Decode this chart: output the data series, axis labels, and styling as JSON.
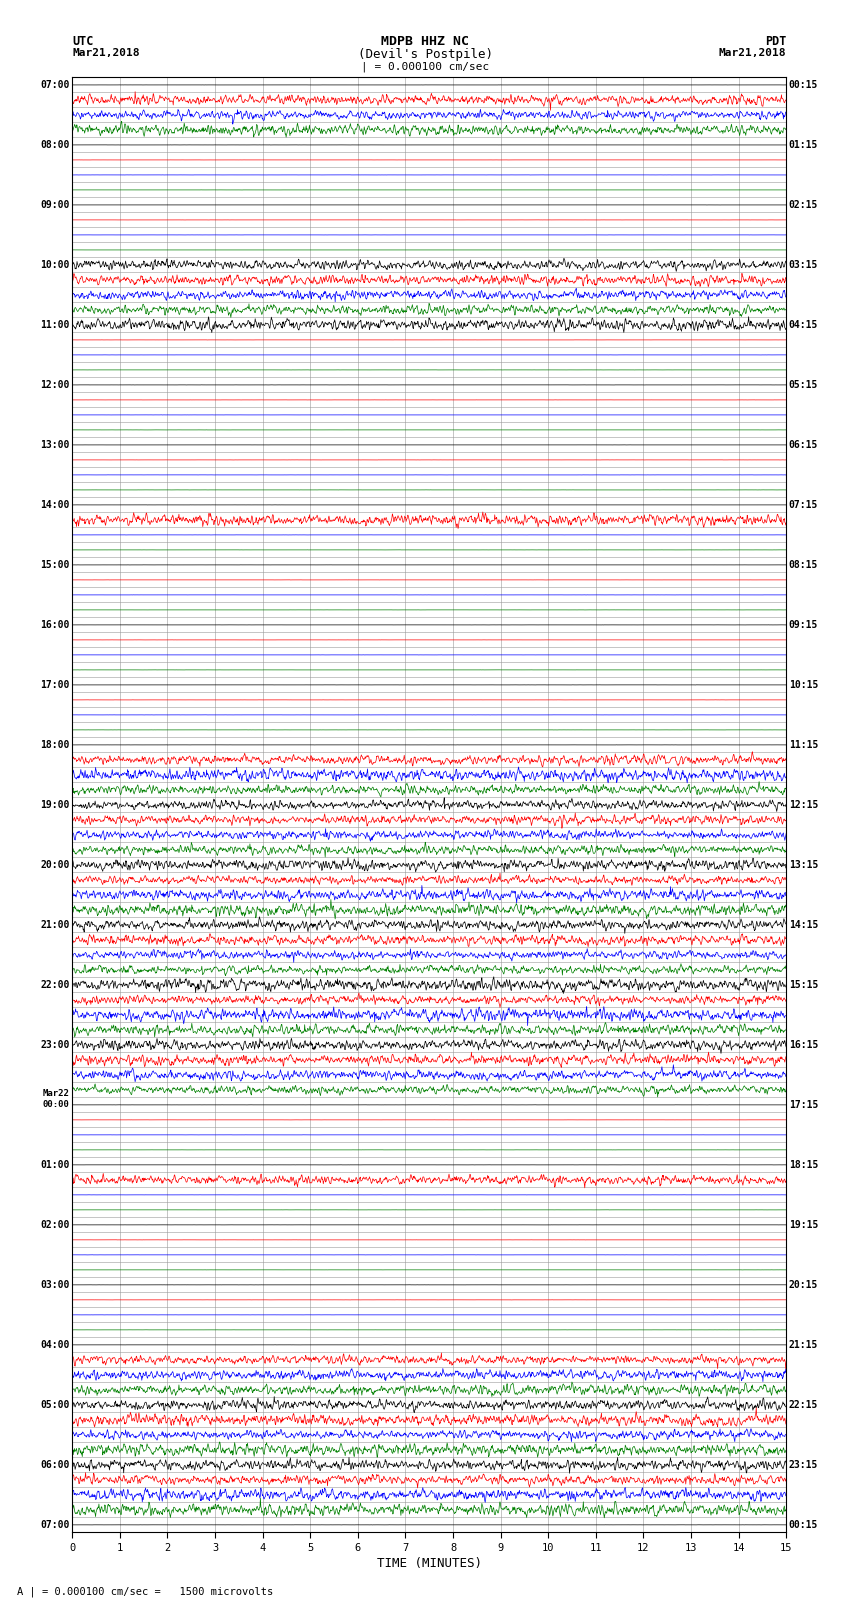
{
  "title_line1": "MDPB HHZ NC",
  "title_line2": "(Devil's Postpile)",
  "title_scale": "| = 0.000100 cm/sec",
  "xlabel": "TIME (MINUTES)",
  "footer": "A | = 0.000100 cm/sec =   1500 microvolts",
  "xlim": [
    0,
    15
  ],
  "xticks": [
    0,
    1,
    2,
    3,
    4,
    5,
    6,
    7,
    8,
    9,
    10,
    11,
    12,
    13,
    14,
    15
  ],
  "bg_color": "white",
  "grid_color": "#999999",
  "colors": [
    "black",
    "red",
    "blue",
    "green"
  ],
  "n_rows": 97,
  "row_labels_utc": {
    "0": "07:00",
    "4": "08:00",
    "8": "09:00",
    "12": "10:00",
    "16": "11:00",
    "20": "12:00",
    "24": "13:00",
    "28": "14:00",
    "32": "15:00",
    "36": "16:00",
    "40": "17:00",
    "44": "18:00",
    "48": "19:00",
    "52": "20:00",
    "56": "21:00",
    "60": "22:00",
    "64": "23:00",
    "68": "Mar22\n00:00",
    "72": "01:00",
    "76": "02:00",
    "80": "03:00",
    "84": "04:00",
    "88": "05:00",
    "92": "06:00",
    "96": "07:00"
  },
  "row_labels_pdt": {
    "0": "00:15",
    "4": "01:15",
    "8": "02:15",
    "12": "03:15",
    "16": "04:15",
    "20": "05:15",
    "24": "06:15",
    "28": "07:15",
    "32": "08:15",
    "36": "09:15",
    "40": "10:15",
    "44": "11:15",
    "48": "12:15",
    "52": "13:15",
    "56": "14:15",
    "60": "15:15",
    "64": "16:15",
    "68": "17:15",
    "72": "18:15",
    "76": "19:15",
    "80": "20:15",
    "84": "21:15",
    "88": "22:15",
    "92": "23:15",
    "96": "00:15"
  },
  "active_rows": [
    [
      0,
      3
    ],
    [
      1,
      0
    ],
    [
      1,
      1
    ],
    [
      1,
      2
    ],
    [
      2,
      0
    ],
    [
      2,
      1
    ],
    [
      2,
      2
    ],
    [
      3,
      0
    ],
    [
      3,
      1
    ],
    [
      3,
      2
    ],
    [
      3,
      3
    ],
    [
      12,
      0
    ],
    [
      12,
      1
    ],
    [
      12,
      2
    ],
    [
      13,
      0
    ],
    [
      13,
      1
    ],
    [
      13,
      2
    ],
    [
      13,
      3
    ],
    [
      14,
      0
    ],
    [
      14,
      1
    ],
    [
      14,
      2
    ],
    [
      14,
      3
    ],
    [
      15,
      0
    ],
    [
      15,
      1
    ],
    [
      15,
      2
    ],
    [
      15,
      3
    ],
    [
      16,
      0
    ],
    [
      16,
      1
    ],
    [
      16,
      2
    ],
    [
      16,
      3
    ],
    [
      28,
      1
    ],
    [
      28,
      2
    ],
    [
      29,
      1
    ],
    [
      29,
      2
    ],
    [
      44,
      2
    ],
    [
      44,
      3
    ],
    [
      45,
      0
    ],
    [
      45,
      1
    ],
    [
      45,
      2
    ],
    [
      45,
      3
    ],
    [
      46,
      0
    ],
    [
      46,
      1
    ],
    [
      46,
      2
    ],
    [
      46,
      3
    ],
    [
      47,
      0
    ],
    [
      47,
      1
    ],
    [
      47,
      2
    ],
    [
      47,
      3
    ],
    [
      48,
      0
    ],
    [
      48,
      1
    ],
    [
      48,
      2
    ],
    [
      48,
      3
    ],
    [
      49,
      0
    ],
    [
      49,
      1
    ],
    [
      49,
      2
    ],
    [
      49,
      3
    ],
    [
      50,
      0
    ],
    [
      50,
      1
    ],
    [
      50,
      2
    ],
    [
      50,
      3
    ],
    [
      51,
      0
    ],
    [
      51,
      1
    ],
    [
      51,
      2
    ],
    [
      51,
      3
    ],
    [
      52,
      0
    ],
    [
      52,
      1
    ],
    [
      52,
      2
    ],
    [
      52,
      3
    ],
    [
      53,
      0
    ],
    [
      53,
      1
    ],
    [
      53,
      2
    ],
    [
      53,
      3
    ],
    [
      54,
      0
    ],
    [
      54,
      1
    ],
    [
      54,
      2
    ],
    [
      54,
      3
    ],
    [
      55,
      0
    ],
    [
      55,
      1
    ],
    [
      55,
      2
    ],
    [
      55,
      3
    ],
    [
      56,
      0
    ],
    [
      56,
      1
    ],
    [
      56,
      2
    ],
    [
      56,
      3
    ],
    [
      57,
      0
    ],
    [
      57,
      1
    ],
    [
      57,
      2
    ],
    [
      57,
      3
    ],
    [
      58,
      0
    ],
    [
      58,
      1
    ],
    [
      58,
      2
    ],
    [
      58,
      3
    ],
    [
      59,
      0
    ],
    [
      59,
      1
    ],
    [
      59,
      2
    ],
    [
      59,
      3
    ],
    [
      60,
      0
    ],
    [
      60,
      1
    ],
    [
      60,
      2
    ],
    [
      60,
      3
    ],
    [
      61,
      0
    ],
    [
      61,
      1
    ],
    [
      61,
      2
    ],
    [
      61,
      3
    ],
    [
      62,
      0
    ],
    [
      62,
      1
    ],
    [
      62,
      2
    ],
    [
      62,
      3
    ],
    [
      63,
      0
    ],
    [
      63,
      1
    ],
    [
      63,
      2
    ],
    [
      63,
      3
    ],
    [
      64,
      0
    ],
    [
      64,
      1
    ],
    [
      64,
      2
    ],
    [
      64,
      3
    ],
    [
      65,
      0
    ],
    [
      65,
      1
    ],
    [
      65,
      2
    ],
    [
      65,
      3
    ],
    [
      66,
      0
    ],
    [
      66,
      1
    ],
    [
      66,
      2
    ],
    [
      66,
      3
    ],
    [
      67,
      0
    ],
    [
      67,
      1
    ],
    [
      67,
      2
    ],
    [
      67,
      3
    ],
    [
      72,
      1
    ],
    [
      72,
      2
    ],
    [
      72,
      3
    ],
    [
      73,
      0
    ],
    [
      73,
      1
    ],
    [
      73,
      2
    ],
    [
      73,
      3
    ],
    [
      76,
      1
    ],
    [
      76,
      2
    ],
    [
      84,
      2
    ],
    [
      84,
      3
    ],
    [
      85,
      0
    ],
    [
      85,
      1
    ],
    [
      85,
      2
    ],
    [
      85,
      3
    ],
    [
      86,
      0
    ],
    [
      86,
      1
    ],
    [
      86,
      2
    ],
    [
      86,
      3
    ],
    [
      87,
      0
    ],
    [
      87,
      1
    ],
    [
      87,
      2
    ],
    [
      87,
      3
    ],
    [
      88,
      0
    ],
    [
      88,
      1
    ],
    [
      88,
      2
    ],
    [
      88,
      3
    ],
    [
      89,
      0
    ],
    [
      89,
      1
    ],
    [
      89,
      2
    ],
    [
      89,
      3
    ],
    [
      90,
      0
    ],
    [
      90,
      1
    ],
    [
      90,
      2
    ],
    [
      90,
      3
    ],
    [
      91,
      0
    ],
    [
      91,
      1
    ],
    [
      91,
      2
    ],
    [
      91,
      3
    ],
    [
      92,
      0
    ],
    [
      92,
      1
    ],
    [
      92,
      2
    ],
    [
      92,
      3
    ],
    [
      93,
      0
    ],
    [
      93,
      1
    ],
    [
      93,
      2
    ],
    [
      93,
      3
    ],
    [
      94,
      0
    ],
    [
      94,
      1
    ],
    [
      94,
      2
    ],
    [
      94,
      3
    ],
    [
      95,
      0
    ],
    [
      95,
      1
    ],
    [
      95,
      2
    ],
    [
      95,
      3
    ]
  ]
}
